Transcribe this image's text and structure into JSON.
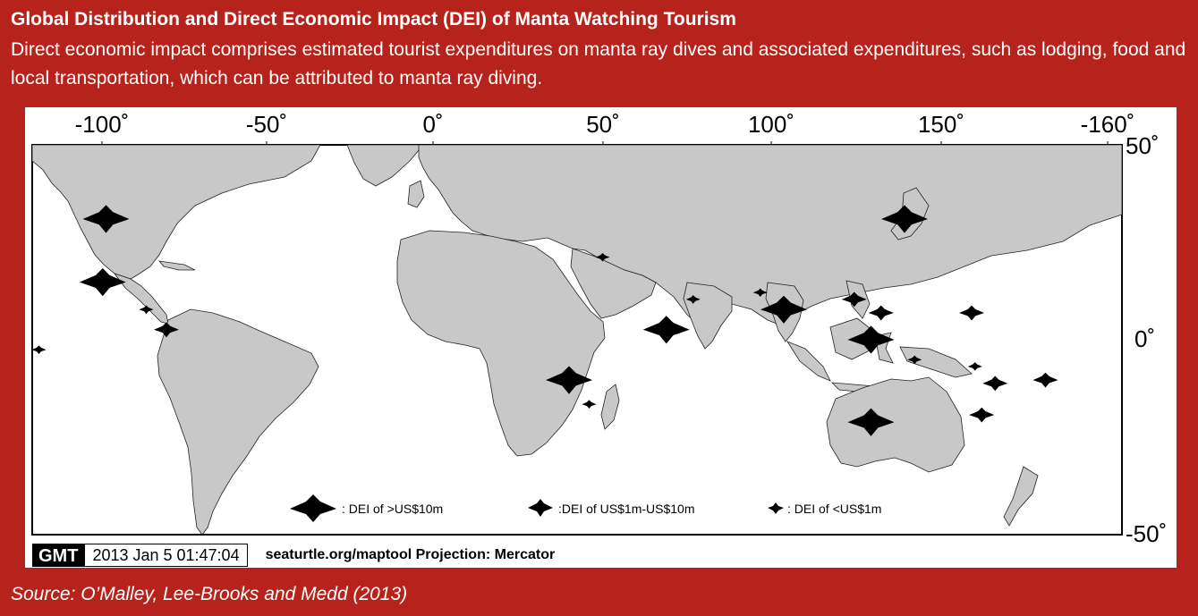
{
  "header": {
    "title": "Global Distribution and Direct Economic Impact (DEI) of Manta Watching Tourism",
    "subtitle": "Direct economic impact comprises estimated tourist expenditures on manta ray dives and associated expenditures, such as lodging, food and local transportation, which can be attributed to manta ray diving."
  },
  "map": {
    "projection": "Mercator",
    "land_color": "#c8c8c8",
    "ocean_color": "#ffffff",
    "lon_ticks": [
      "-100˚",
      "-50˚",
      "0˚",
      "50˚",
      "100˚",
      "150˚",
      "-160˚"
    ],
    "lat_ticks": [
      "50˚",
      "0˚",
      "-50˚"
    ],
    "legend": [
      {
        "size": "large",
        "label": ": DEI of >US$10m"
      },
      {
        "size": "medium",
        "label": ":DEI of US$1m-US$10m"
      },
      {
        "size": "small",
        "label": ": DEI of <US$1m"
      }
    ],
    "markers": [
      {
        "region": "California",
        "size": "large",
        "lon": -98,
        "lat": 34
      },
      {
        "region": "Mexico",
        "size": "large",
        "lon": -99,
        "lat": 17
      },
      {
        "region": "Costa Rica",
        "size": "small",
        "lon": -86,
        "lat": 9
      },
      {
        "region": "Colombia",
        "size": "medium",
        "lon": -80,
        "lat": 3
      },
      {
        "region": "Galapagos",
        "size": "small",
        "lon": -118,
        "lat": -3
      },
      {
        "region": "Red Sea",
        "size": "small",
        "lon": 50,
        "lat": 24
      },
      {
        "region": "Maldives",
        "size": "large",
        "lon": 69,
        "lat": 3
      },
      {
        "region": "Mozambique",
        "size": "large",
        "lon": 40,
        "lat": -12
      },
      {
        "region": "Madagascar",
        "size": "small",
        "lon": 46,
        "lat": -19
      },
      {
        "region": "Sri Lanka",
        "size": "small",
        "lon": 77,
        "lat": 12
      },
      {
        "region": "Thailand",
        "size": "small",
        "lon": 97,
        "lat": 14
      },
      {
        "region": "Andaman Sea",
        "size": "large",
        "lon": 104,
        "lat": 9
      },
      {
        "region": "Philippines",
        "size": "medium",
        "lon": 125,
        "lat": 12
      },
      {
        "region": "Palau",
        "size": "medium",
        "lon": 133,
        "lat": 8
      },
      {
        "region": "Indonesia",
        "size": "large",
        "lon": 130,
        "lat": 0
      },
      {
        "region": "Papua New Guinea",
        "size": "small",
        "lon": 143,
        "lat": -6
      },
      {
        "region": "Micronesia",
        "size": "medium",
        "lon": 160,
        "lat": 8
      },
      {
        "region": "Solomon Islands",
        "size": "small",
        "lon": 161,
        "lat": -8
      },
      {
        "region": "Vanuatu",
        "size": "medium",
        "lon": 167,
        "lat": -13
      },
      {
        "region": "New Caledonia",
        "size": "medium",
        "lon": 163,
        "lat": -22
      },
      {
        "region": "Fiji",
        "size": "medium",
        "lon": 182,
        "lat": -12
      },
      {
        "region": "Australia",
        "size": "large",
        "lon": 130,
        "lat": -24
      },
      {
        "region": "Japan",
        "size": "large",
        "lon": 140,
        "lat": 34
      }
    ],
    "gmt": {
      "logo": "GMT",
      "timestamp": "2013 Jan  5 01:47:04",
      "projection_note": "seaturtle.org/maptool Projection: Mercator"
    }
  },
  "footer": {
    "source": "Source: O’Malley, Lee-Brooks and Medd (2013)"
  }
}
